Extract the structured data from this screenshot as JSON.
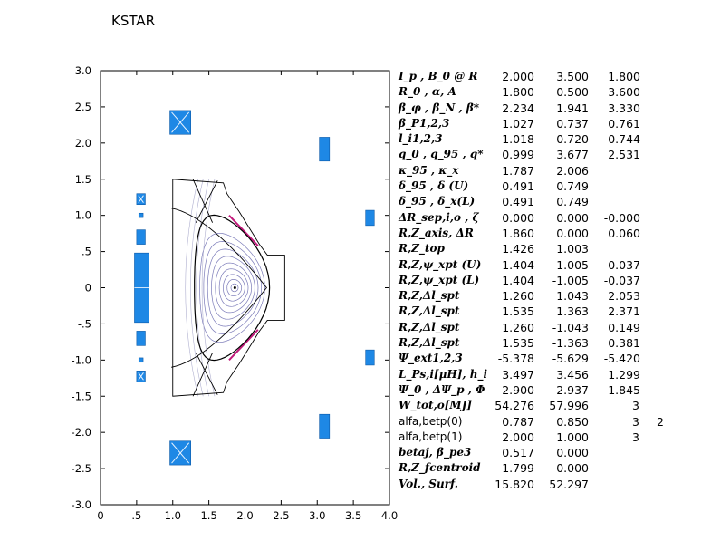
{
  "title": "KSTAR",
  "axes": {
    "x_ticks": [
      "0",
      ".5",
      "1.0",
      "1.5",
      "2.0",
      "2.5",
      "3.0",
      "3.5",
      "4.0"
    ],
    "y_ticks": [
      "3.0",
      "2.5",
      "2.0",
      "1.5",
      "1.0",
      ".5",
      "0",
      "-.5",
      "-1.0",
      "-1.5",
      "-2.0",
      "-2.5",
      "-3.0"
    ],
    "xlim": [
      0,
      4.0
    ],
    "ylim": [
      -3.0,
      3.0
    ]
  },
  "colors": {
    "coil": "#1e88e5",
    "flux": "#7a7ab8",
    "separatrix": "#000000",
    "wall_accent": "#c2187a"
  },
  "params": [
    {
      "label": "I_p , B_0 @ R",
      "v": [
        "2.000",
        "3.500",
        "1.800"
      ]
    },
    {
      "label": "R_0 , α, A",
      "v": [
        "1.800",
        "0.500",
        "3.600"
      ]
    },
    {
      "label": "β_φ , β_N , β*",
      "v": [
        "2.234",
        "1.941",
        "3.330"
      ]
    },
    {
      "label": "β_P1,2,3",
      "v": [
        "1.027",
        "0.737",
        "0.761"
      ]
    },
    {
      "label": "l_i1,2,3",
      "v": [
        "1.018",
        "0.720",
        "0.744"
      ]
    },
    {
      "label": "q_0 , q_95 , q*",
      "v": [
        "0.999",
        "3.677",
        "2.531"
      ]
    },
    {
      "label": "κ_95 , κ_x",
      "v": [
        "1.787",
        "2.006",
        ""
      ]
    },
    {
      "label": "δ_95 , δ (U)",
      "v": [
        "0.491",
        "0.749",
        ""
      ]
    },
    {
      "label": "δ_95 , δ_x(L)",
      "v": [
        "0.491",
        "0.749",
        ""
      ]
    },
    {
      "label": "ΔR_sep,i,o , ζ",
      "v": [
        "0.000",
        "0.000",
        "-0.000"
      ]
    },
    {
      "label": "R,Z_axis, ΔR",
      "v": [
        "1.860",
        "0.000",
        "0.060"
      ]
    },
    {
      "label": "R,Z_top",
      "v": [
        "1.426",
        "1.003",
        ""
      ]
    },
    {
      "label": "R,Z,ψ_xpt (U)",
      "v": [
        "1.404",
        "1.005",
        "-0.037"
      ]
    },
    {
      "label": "R,Z,ψ_xpt (L)",
      "v": [
        "1.404",
        "-1.005",
        "-0.037"
      ]
    },
    {
      "label": "R,Z,Δl_spt",
      "v": [
        "1.260",
        "1.043",
        "2.053"
      ]
    },
    {
      "label": "R,Z,Δl_spt",
      "v": [
        "1.535",
        "1.363",
        "2.371"
      ]
    },
    {
      "label": "R,Z,Δl_spt",
      "v": [
        "1.260",
        "-1.043",
        "0.149"
      ]
    },
    {
      "label": "R,Z,Δl_spt",
      "v": [
        "1.535",
        "-1.363",
        "0.381"
      ]
    },
    {
      "label": "Ψ_ext1,2,3",
      "v": [
        "-5.378",
        "-5.629",
        "-5.420"
      ]
    },
    {
      "label": "L_Ps,i[μH], h_i",
      "v": [
        "3.497",
        "3.456",
        "1.299"
      ]
    },
    {
      "label": "Ψ_0 , ΔΨ_p , Φ",
      "v": [
        "2.900",
        "-2.937",
        "1.845"
      ]
    },
    {
      "label": "W_tot,o[MJ]",
      "v": [
        "54.276",
        "57.996",
        "3"
      ]
    },
    {
      "label": "alfa,betp(0)",
      "mono": true,
      "v": [
        "0.787",
        "0.850",
        "3",
        "2"
      ]
    },
    {
      "label": "alfa,betp(1)",
      "mono": true,
      "v": [
        "2.000",
        "1.000",
        "3"
      ]
    },
    {
      "label": "betaj, β_pe3",
      "v": [
        "0.517",
        "0.000",
        ""
      ]
    },
    {
      "label": "R,Z_fcentroid",
      "v": [
        "1.799",
        "-0.000",
        ""
      ]
    },
    {
      "label": "Vol., Surf.",
      "v": [
        "15.820",
        "52.297",
        ""
      ]
    }
  ]
}
